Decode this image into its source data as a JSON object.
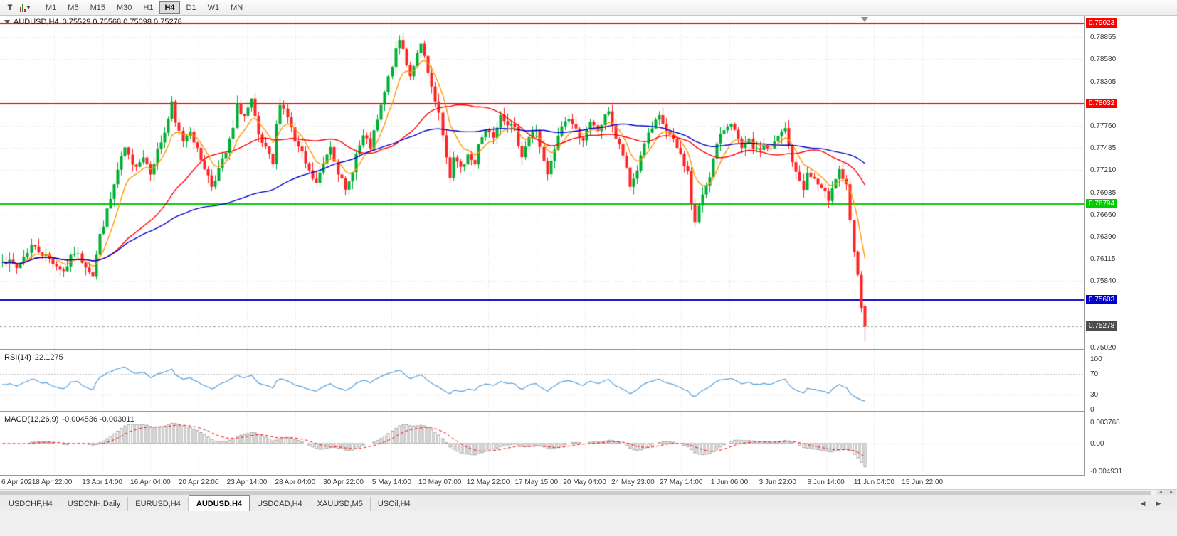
{
  "toolbar": {
    "text_tool_glyph": "T",
    "dropdown_glyph": "▾",
    "timeframes": [
      "M1",
      "M5",
      "M15",
      "M30",
      "H1",
      "H4",
      "D1",
      "W1",
      "MN"
    ],
    "active_timeframe": "H4"
  },
  "chart_data": {
    "type": "candlestick",
    "symbol": "AUDUSD",
    "period": "H4",
    "title_symbol": "AUDUSD,H4",
    "title_ohlc": "0.75529 0.75568 0.75098 0.75278",
    "current_ohlc": {
      "open": 0.75529,
      "high": 0.75568,
      "low": 0.75098,
      "close": 0.75278
    },
    "y_range": {
      "min": 0.75,
      "max": 0.7912
    },
    "y_ticks": [
      0.78855,
      0.7858,
      0.78305,
      0.7776,
      0.77485,
      0.7721,
      0.76935,
      0.7666,
      0.7639,
      0.76115,
      0.7584,
      0.7502
    ],
    "levels": [
      {
        "value": 0.79023,
        "label": "0.79023",
        "color": "#ff0000"
      },
      {
        "value": 0.78032,
        "label": "0.78032",
        "color": "#ff0000"
      },
      {
        "value": 0.76794,
        "label": "0.76794",
        "color": "#00cc00"
      },
      {
        "value": 0.75603,
        "label": "0.75603",
        "color": "#0000c8"
      }
    ],
    "current_price": {
      "value": 0.75278,
      "label": "0.75278",
      "box_color": "#4d4d4d"
    },
    "x_labels": [
      "6 Apr 2021",
      "8 Apr 22:00",
      "13 Apr 14:00",
      "16 Apr 04:00",
      "20 Apr 22:00",
      "23 Apr 14:00",
      "28 Apr 04:00",
      "30 Apr 22:00",
      "5 May 14:00",
      "10 May 07:00",
      "12 May 22:00",
      "17 May 15:00",
      "20 May 04:00",
      "24 May 23:00",
      "27 May 14:00",
      "1 Jun 06:00",
      "3 Jun 22:00",
      "8 Jun 14:00",
      "11 Jun 04:00",
      "15 Jun 22:00"
    ],
    "visible_bars": 240,
    "seed": 7,
    "close_noise": 0.0009,
    "wick_extent": 0.001,
    "up_color": "#00ad33",
    "down_color": "#ff2222",
    "price_keypoints": [
      [
        0,
        0.7612
      ],
      [
        4,
        0.76
      ],
      [
        8,
        0.7628
      ],
      [
        12,
        0.7615
      ],
      [
        17,
        0.7596
      ],
      [
        20,
        0.762
      ],
      [
        23,
        0.7604
      ],
      [
        25,
        0.7592
      ],
      [
        27,
        0.764
      ],
      [
        30,
        0.7685
      ],
      [
        32,
        0.772
      ],
      [
        34,
        0.7748
      ],
      [
        36,
        0.7725
      ],
      [
        39,
        0.7738
      ],
      [
        41,
        0.772
      ],
      [
        43,
        0.7745
      ],
      [
        45,
        0.7768
      ],
      [
        47,
        0.7802
      ],
      [
        48,
        0.7778
      ],
      [
        50,
        0.7758
      ],
      [
        52,
        0.7772
      ],
      [
        54,
        0.7745
      ],
      [
        56,
        0.7725
      ],
      [
        58,
        0.7702
      ],
      [
        60,
        0.7722
      ],
      [
        62,
        0.7742
      ],
      [
        64,
        0.7772
      ],
      [
        65,
        0.78
      ],
      [
        67,
        0.7788
      ],
      [
        69,
        0.7806
      ],
      [
        71,
        0.7762
      ],
      [
        73,
        0.7746
      ],
      [
        75,
        0.7728
      ],
      [
        76,
        0.7775
      ],
      [
        77,
        0.7806
      ],
      [
        79,
        0.7788
      ],
      [
        81,
        0.7756
      ],
      [
        83,
        0.774
      ],
      [
        85,
        0.7718
      ],
      [
        87,
        0.7704
      ],
      [
        88,
        0.7716
      ],
      [
        90,
        0.7742
      ],
      [
        91,
        0.7752
      ],
      [
        93,
        0.772
      ],
      [
        95,
        0.7694
      ],
      [
        96,
        0.7706
      ],
      [
        98,
        0.774
      ],
      [
        100,
        0.7762
      ],
      [
        102,
        0.775
      ],
      [
        104,
        0.7782
      ],
      [
        106,
        0.7816
      ],
      [
        108,
        0.7852
      ],
      [
        110,
        0.7882
      ],
      [
        111,
        0.787
      ],
      [
        113,
        0.7838
      ],
      [
        114,
        0.7852
      ],
      [
        116,
        0.7874
      ],
      [
        117,
        0.786
      ],
      [
        119,
        0.782
      ],
      [
        121,
        0.779
      ],
      [
        122,
        0.776
      ],
      [
        124,
        0.7714
      ],
      [
        125,
        0.7736
      ],
      [
        127,
        0.7722
      ],
      [
        129,
        0.774
      ],
      [
        131,
        0.7728
      ],
      [
        132,
        0.7756
      ],
      [
        134,
        0.7772
      ],
      [
        136,
        0.7764
      ],
      [
        138,
        0.7792
      ],
      [
        140,
        0.778
      ],
      [
        142,
        0.777
      ],
      [
        144,
        0.774
      ],
      [
        146,
        0.7762
      ],
      [
        148,
        0.7772
      ],
      [
        150,
        0.773
      ],
      [
        151,
        0.7714
      ],
      [
        153,
        0.7746
      ],
      [
        155,
        0.7776
      ],
      [
        157,
        0.7786
      ],
      [
        159,
        0.777
      ],
      [
        161,
        0.776
      ],
      [
        163,
        0.7778
      ],
      [
        165,
        0.777
      ],
      [
        167,
        0.7786
      ],
      [
        168,
        0.7796
      ],
      [
        170,
        0.776
      ],
      [
        172,
        0.774
      ],
      [
        174,
        0.77
      ],
      [
        176,
        0.7722
      ],
      [
        178,
        0.7756
      ],
      [
        180,
        0.7772
      ],
      [
        182,
        0.7786
      ],
      [
        184,
        0.777
      ],
      [
        186,
        0.7756
      ],
      [
        188,
        0.774
      ],
      [
        190,
        0.7718
      ],
      [
        191,
        0.768
      ],
      [
        192,
        0.7656
      ],
      [
        194,
        0.7692
      ],
      [
        196,
        0.7716
      ],
      [
        198,
        0.7752
      ],
      [
        200,
        0.7772
      ],
      [
        202,
        0.7782
      ],
      [
        204,
        0.7756
      ],
      [
        205,
        0.7746
      ],
      [
        207,
        0.7756
      ],
      [
        209,
        0.7744
      ],
      [
        211,
        0.7752
      ],
      [
        213,
        0.7746
      ],
      [
        215,
        0.7762
      ],
      [
        217,
        0.7772
      ],
      [
        218,
        0.775
      ],
      [
        220,
        0.7716
      ],
      [
        222,
        0.77
      ],
      [
        223,
        0.7716
      ],
      [
        225,
        0.771
      ],
      [
        227,
        0.7696
      ],
      [
        229,
        0.7686
      ],
      [
        230,
        0.7702
      ],
      [
        232,
        0.7722
      ],
      [
        234,
        0.77
      ],
      [
        235,
        0.7656
      ],
      [
        236,
        0.762
      ],
      [
        237,
        0.7588
      ],
      [
        238,
        0.7553
      ],
      [
        239,
        0.75278
      ]
    ],
    "moving_averages": [
      {
        "type": "ema",
        "period": 8,
        "color": "#ff9800"
      },
      {
        "type": "sma",
        "period": 30,
        "color": "#ff0000"
      },
      {
        "type": "sma",
        "period": 75,
        "color": "#0000cd"
      }
    ],
    "rsi": {
      "name": "RSI(14)",
      "value": "22.1275",
      "period": 14,
      "color": "#55a0dd",
      "levels": [
        70,
        30
      ],
      "axis_labels": [
        {
          "value": 100,
          "text": "100"
        },
        {
          "value": 70,
          "text": "70"
        },
        {
          "value": 30,
          "text": "30"
        },
        {
          "value": 0,
          "text": "0"
        }
      ]
    },
    "macd": {
      "name": "MACD(12,26,9)",
      "values_text": "-0.004536 -0.003011",
      "macd_value": -0.004536,
      "signal_value": -0.003011,
      "histogram_color": "#9f9f9f",
      "signal_color": "#ff0000",
      "scale_max": 0.003768,
      "scale_min": -0.004931,
      "axis_labels": [
        {
          "value": 0.003768,
          "text": "0.003768"
        },
        {
          "value": 0,
          "text": "0.00"
        },
        {
          "value": -0.004931,
          "text": "-0.004931"
        }
      ]
    }
  },
  "tabs": {
    "items": [
      "USDCHF,H4",
      "USDCNH,Daily",
      "EURUSD,H4",
      "AUDUSD,H4",
      "USDCAD,H4",
      "XAUUSD,M5",
      "USOil,H4"
    ],
    "active_index": 3,
    "scroll_left_glyph": "◀",
    "scroll_right_glyph": "▶"
  },
  "scrollbar": {
    "left_glyph": "◄",
    "right_glyph": "►"
  }
}
